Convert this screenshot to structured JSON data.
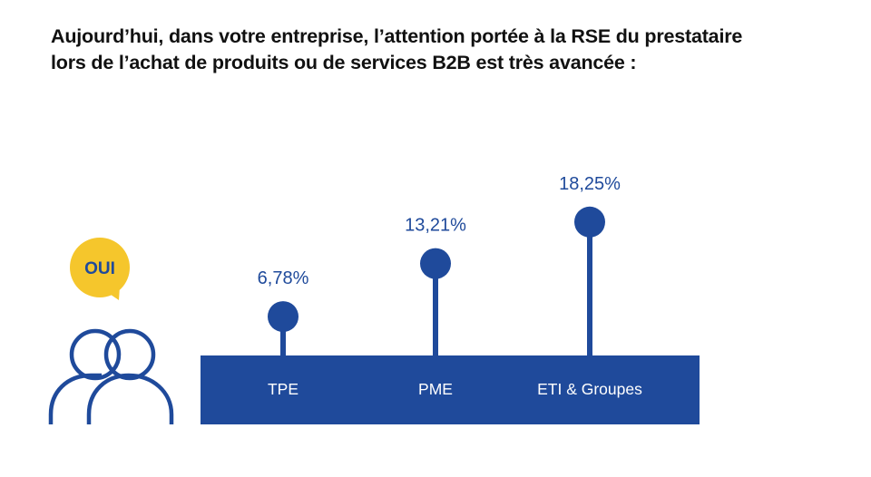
{
  "title_lines": [
    "Aujourd’hui, dans votre entreprise, l’attention portée à la RSE du prestataire",
    "lors de l’achat de produits ou de services B2B est très avancée :"
  ],
  "badge": {
    "text": "OUI",
    "color": "#F5C62C",
    "text_color": "#1F4A9B",
    "icon": "speech-bubble-icon"
  },
  "people_icon": "people-icon",
  "colors": {
    "primary": "#1F4A9B",
    "bar_text": "#FFFFFF",
    "value_text": "#1F4A9B"
  },
  "chart_data": {
    "type": "lollipop",
    "categories": [
      "TPE",
      "PME",
      "ETI & Groupes"
    ],
    "values": [
      6.78,
      13.21,
      18.25
    ],
    "value_labels": [
      "6,78%",
      "13,21%",
      "18,25%"
    ],
    "title": "Aujourd’hui, dans votre entreprise, l’attention portée à la RSE du prestataire lors de l’achat de produits ou de services B2B est très avancée :",
    "xlabel": "",
    "ylabel": "",
    "grid": false,
    "legend": "none"
  }
}
